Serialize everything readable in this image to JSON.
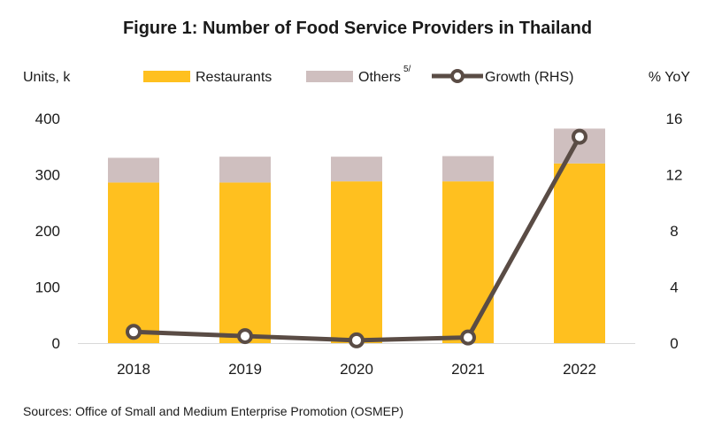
{
  "chart_data": {
    "type": "bar",
    "title": "Figure 1: Number of Food Service Providers in Thailand",
    "ylabel": "Units, k",
    "y2label": "% YoY",
    "categories": [
      "2018",
      "2019",
      "2020",
      "2021",
      "2022"
    ],
    "series": [
      {
        "name": "Restaurants",
        "kind": "stacked-bar",
        "axis": "left",
        "color": "#FFC01F",
        "values": [
          286,
          286,
          288,
          288,
          320
        ]
      },
      {
        "name": "Others",
        "name_superscript": "5/",
        "kind": "stacked-bar",
        "axis": "left",
        "color": "#CFBFBF",
        "values": [
          44,
          46,
          44,
          45,
          62
        ]
      },
      {
        "name": "Growth (RHS)",
        "kind": "line",
        "axis": "right",
        "color": "#5A4C45",
        "values": [
          0.8,
          0.5,
          0.2,
          0.4,
          14.7
        ]
      }
    ],
    "ylim": [
      0,
      400
    ],
    "y2lim": [
      0,
      16
    ],
    "yticks": [
      "0",
      "100",
      "200",
      "300",
      "400"
    ],
    "y2ticks": [
      "0",
      "4",
      "8",
      "12",
      "16"
    ],
    "grid": false,
    "legend_position": "top"
  },
  "source": "Sources:  Office of Small and Medium Enterprise Promotion (OSMEP)"
}
